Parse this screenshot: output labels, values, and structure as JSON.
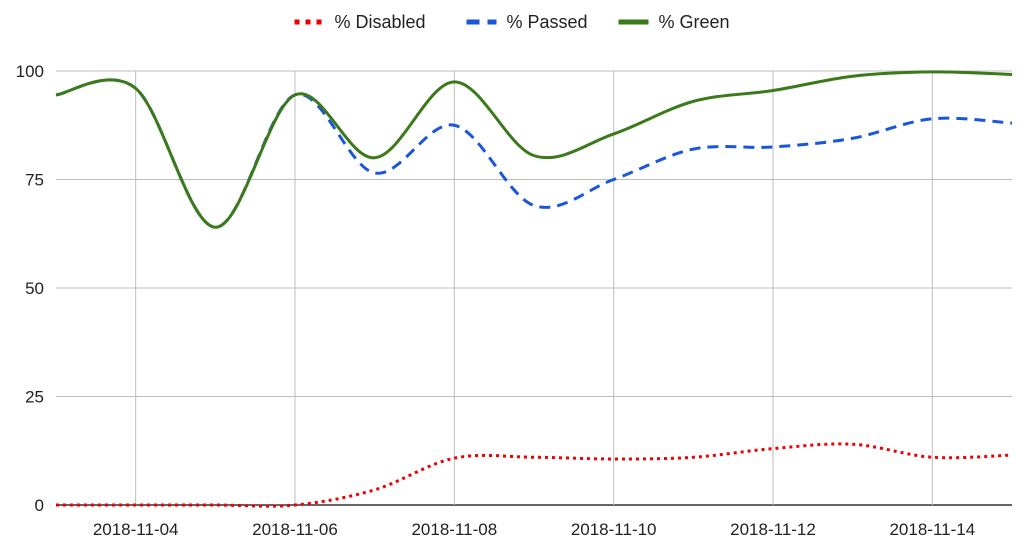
{
  "chart_data": {
    "type": "line",
    "x": [
      "2018-11-03",
      "2018-11-04",
      "2018-11-05",
      "2018-11-06",
      "2018-11-07",
      "2018-11-08",
      "2018-11-09",
      "2018-11-10",
      "2018-11-11",
      "2018-11-12",
      "2018-11-13",
      "2018-11-14",
      "2018-11-15"
    ],
    "x_range": [
      "2018-11-03",
      "2018-11-15"
    ],
    "ylim": [
      0,
      100
    ],
    "y_ticks": [
      0,
      25,
      50,
      75,
      100
    ],
    "x_ticks": [
      "2018-11-04",
      "2018-11-06",
      "2018-11-08",
      "2018-11-10",
      "2018-11-12",
      "2018-11-14"
    ],
    "grid": true,
    "legend_position": "top",
    "smooth": true,
    "series": [
      {
        "name": "% Disabled",
        "color": "#ee0000",
        "dash": "dotted",
        "values": [
          0,
          0,
          0,
          0,
          3.5,
          10.8,
          11,
          10.6,
          11,
          13,
          14,
          11,
          11.5
        ]
      },
      {
        "name": "% Passed",
        "color": "#1a56db",
        "dash": "dashed",
        "values": [
          94.5,
          96,
          64,
          94.5,
          76.5,
          87.5,
          69,
          75,
          82,
          82.5,
          84.5,
          89,
          88
        ]
      },
      {
        "name": "% Green",
        "color": "#3a7a1a",
        "dash": "solid",
        "values": [
          94.5,
          96,
          64,
          94.5,
          80,
          97.5,
          80.5,
          85.5,
          93,
          95.5,
          98.8,
          99.8,
          99.2
        ]
      }
    ]
  }
}
